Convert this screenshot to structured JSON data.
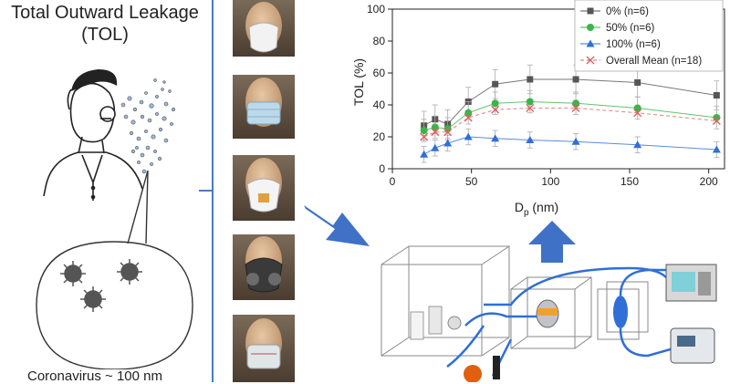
{
  "left_panel": {
    "title_line1": "Total Outward Leakage",
    "title_line2": "(TOL)",
    "bottom_label": "Coronavirus ~ 100 nm"
  },
  "colors": {
    "divider": "#4a7dbf",
    "arrow": "#3f72c6",
    "series_0": "#5a5454",
    "series_50": "#3cb44b",
    "series_100": "#2f6fd6",
    "series_mean": "#e06060"
  },
  "chart_data": {
    "type": "line",
    "xlabel": "D",
    "xlabel_sub": "p",
    "xlabel_unit": " (nm)",
    "ylabel": "TOL (%)",
    "xlim": [
      0,
      210
    ],
    "ylim": [
      0,
      100
    ],
    "x_ticks": [
      "0",
      "50",
      "100",
      "150",
      "200"
    ],
    "y_ticks": [
      "0",
      "20",
      "40",
      "60",
      "80",
      "100"
    ],
    "x": [
      20,
      27,
      35,
      48,
      65,
      87,
      116,
      155,
      205
    ],
    "legend_position": "top-right",
    "series": [
      {
        "name": "0% (n=6)",
        "marker": "square",
        "values": [
          27,
          31,
          28,
          42,
          53,
          56,
          56,
          54,
          46
        ]
      },
      {
        "name": "50% (n=6)",
        "marker": "circle",
        "values": [
          24,
          26,
          25,
          35,
          41,
          42,
          41,
          38,
          32
        ]
      },
      {
        "name": "100% (n=6)",
        "marker": "triangle",
        "values": [
          9,
          13,
          16,
          20,
          19,
          18,
          17,
          15,
          12
        ]
      },
      {
        "name": "Overall Mean (n=18)",
        "marker": "x",
        "dashed": true,
        "values": [
          20,
          23,
          23,
          32,
          37,
          38,
          38,
          35,
          30
        ]
      }
    ]
  }
}
